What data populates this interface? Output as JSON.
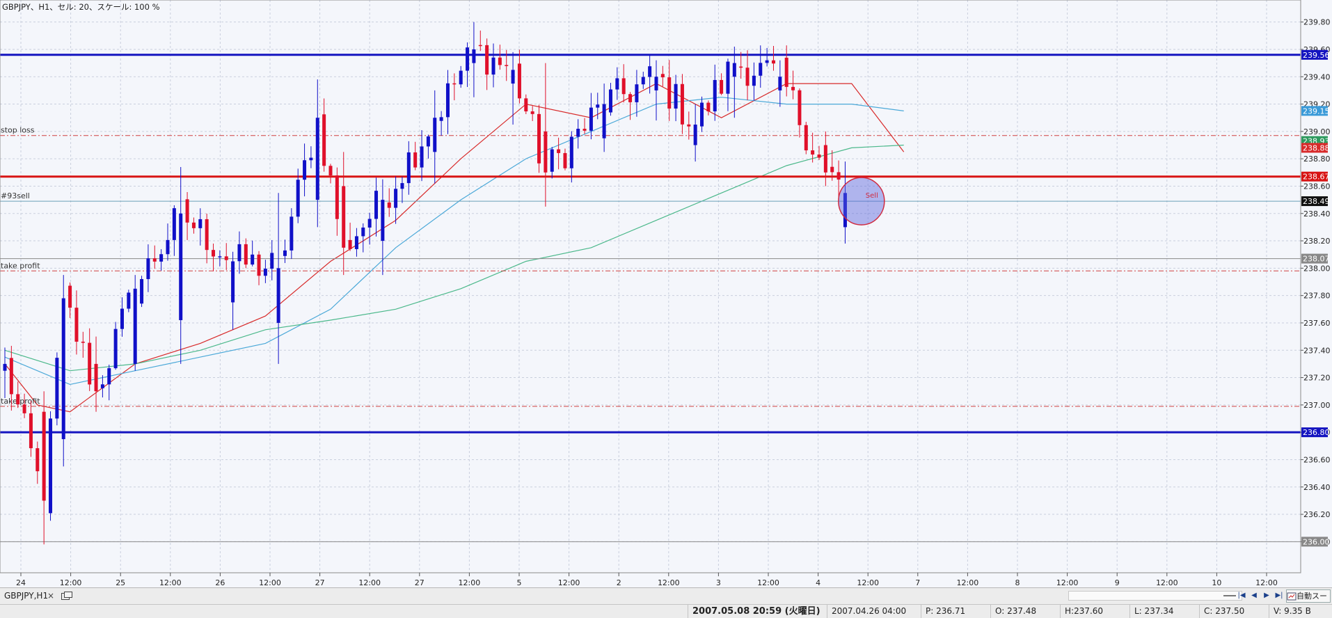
{
  "window": {
    "title": "GBPJPY、H1、セル: 20、スケール: 100 %"
  },
  "colors": {
    "background": "#f4f6fb",
    "grid": "#c9cfdd",
    "bull_candle": "#1010c8",
    "bear_candle": "#e0102a",
    "ma_fast": "#d82a2a",
    "ma_mid": "#4aa8d8",
    "ma_slow": "#4ab88a",
    "resistance": "#1414c0",
    "entry": "#d81414",
    "order_line": "#6aa0b8",
    "dashed_levels": "#d04040",
    "gray_level": "#888888"
  },
  "chart_data": {
    "type": "candlestick",
    "symbol": "GBPJPY",
    "timeframe": "H1",
    "ylim": [
      235.9,
      239.9
    ],
    "grid": true,
    "y_ticks": [
      "239.80",
      "239.60",
      "239.40",
      "239.20",
      "239.00",
      "238.80",
      "238.60",
      "238.40",
      "238.20",
      "238.00",
      "237.80",
      "237.60",
      "237.40",
      "237.20",
      "237.00",
      "236.80",
      "236.60",
      "236.40",
      "236.20",
      "236.00"
    ],
    "x_ticks": [
      "24",
      "12:00",
      "25",
      "12:00",
      "26",
      "12:00",
      "27",
      "12:00",
      "27",
      "12:00",
      "5",
      "12:00",
      "2",
      "12:00",
      "3",
      "12:00",
      "4",
      "12:00",
      "7",
      "12:00",
      "8",
      "12:00",
      "9",
      "12:00",
      "10",
      "12:00"
    ],
    "candle_count": 130,
    "ohlc_keypoints": [
      {
        "i": 0,
        "o": 237.25,
        "h": 237.42,
        "l": 237.05,
        "c": 237.3
      },
      {
        "i": 6,
        "o": 236.95,
        "h": 237.1,
        "l": 235.98,
        "c": 236.3
      },
      {
        "i": 9,
        "o": 236.75,
        "h": 237.95,
        "l": 236.55,
        "c": 237.78
      },
      {
        "i": 14,
        "o": 237.3,
        "h": 237.5,
        "l": 236.95,
        "c": 237.1
      },
      {
        "i": 20,
        "o": 237.3,
        "h": 237.95,
        "l": 237.25,
        "c": 237.85
      },
      {
        "i": 27,
        "o": 237.62,
        "h": 238.74,
        "l": 237.3,
        "c": 238.4
      },
      {
        "i": 35,
        "o": 237.75,
        "h": 238.12,
        "l": 237.55,
        "c": 238.05
      },
      {
        "i": 42,
        "o": 237.6,
        "h": 238.55,
        "l": 237.3,
        "c": 238.0
      },
      {
        "i": 48,
        "o": 238.5,
        "h": 239.38,
        "l": 238.3,
        "c": 239.1
      },
      {
        "i": 52,
        "o": 238.6,
        "h": 238.85,
        "l": 237.95,
        "c": 238.15
      },
      {
        "i": 58,
        "o": 238.2,
        "h": 238.65,
        "l": 237.95,
        "c": 238.5
      },
      {
        "i": 66,
        "o": 238.85,
        "h": 239.3,
        "l": 238.62,
        "c": 239.1
      },
      {
        "i": 72,
        "o": 239.5,
        "h": 239.8,
        "l": 239.25,
        "c": 239.6
      },
      {
        "i": 78,
        "o": 239.35,
        "h": 239.58,
        "l": 239.05,
        "c": 239.45
      },
      {
        "i": 83,
        "o": 239.0,
        "h": 239.5,
        "l": 238.45,
        "c": 238.7
      },
      {
        "i": 92,
        "o": 238.95,
        "h": 239.35,
        "l": 238.85,
        "c": 239.2
      },
      {
        "i": 100,
        "o": 239.3,
        "h": 239.52,
        "l": 239.08,
        "c": 239.4
      },
      {
        "i": 106,
        "o": 238.9,
        "h": 239.2,
        "l": 238.78,
        "c": 239.05
      },
      {
        "i": 112,
        "o": 239.4,
        "h": 239.62,
        "l": 239.1,
        "c": 239.5
      },
      {
        "i": 119,
        "o": 239.3,
        "h": 239.52,
        "l": 239.18,
        "c": 239.4
      },
      {
        "i": 126,
        "o": 238.9,
        "h": 239.0,
        "l": 238.6,
        "c": 238.7
      },
      {
        "i": 129,
        "o": 238.3,
        "h": 238.78,
        "l": 238.18,
        "c": 238.55
      }
    ],
    "moving_averages": [
      {
        "color_key": "ma_fast",
        "points": [
          [
            0,
            237.3
          ],
          [
            5,
            237.0
          ],
          [
            10,
            236.95
          ],
          [
            20,
            237.3
          ],
          [
            30,
            237.45
          ],
          [
            40,
            237.65
          ],
          [
            50,
            238.05
          ],
          [
            60,
            238.35
          ],
          [
            70,
            238.8
          ],
          [
            80,
            239.2
          ],
          [
            90,
            239.1
          ],
          [
            100,
            239.35
          ],
          [
            110,
            239.1
          ],
          [
            120,
            239.35
          ],
          [
            130,
            239.35
          ],
          [
            138,
            238.85
          ]
        ]
      },
      {
        "color_key": "ma_mid",
        "points": [
          [
            0,
            237.35
          ],
          [
            10,
            237.15
          ],
          [
            20,
            237.25
          ],
          [
            30,
            237.35
          ],
          [
            40,
            237.45
          ],
          [
            50,
            237.7
          ],
          [
            60,
            238.15
          ],
          [
            70,
            238.5
          ],
          [
            80,
            238.8
          ],
          [
            90,
            239.0
          ],
          [
            100,
            239.2
          ],
          [
            110,
            239.25
          ],
          [
            120,
            239.2
          ],
          [
            130,
            239.2
          ],
          [
            138,
            239.15
          ]
        ]
      },
      {
        "color_key": "ma_slow",
        "points": [
          [
            0,
            237.4
          ],
          [
            10,
            237.25
          ],
          [
            20,
            237.3
          ],
          [
            30,
            237.4
          ],
          [
            40,
            237.55
          ],
          [
            50,
            237.62
          ],
          [
            60,
            237.7
          ],
          [
            70,
            237.85
          ],
          [
            80,
            238.05
          ],
          [
            90,
            238.15
          ],
          [
            100,
            238.35
          ],
          [
            110,
            238.55
          ],
          [
            120,
            238.75
          ],
          [
            130,
            238.88
          ],
          [
            138,
            238.9
          ]
        ]
      }
    ],
    "horizontal_lines": [
      {
        "price": 239.56,
        "style": "solid",
        "color_key": "resistance",
        "label": "",
        "tag": "239.56",
        "tag_bg": "#1414c0"
      },
      {
        "price": 239.15,
        "style": "none",
        "color_key": "ma_mid",
        "label": "",
        "tag": "239.15",
        "tag_bg": "#3a9ad8"
      },
      {
        "price": 238.97,
        "style": "dash",
        "color_key": "dashed_levels",
        "label": "stop loss",
        "tag": "",
        "tag_bg": ""
      },
      {
        "price": 238.93,
        "style": "none",
        "color_key": "ma_slow",
        "label": "",
        "tag": "238.93",
        "tag_bg": "#2e9a5e"
      },
      {
        "price": 238.88,
        "style": "none",
        "color_key": "ma_fast",
        "label": "",
        "tag": "238.88",
        "tag_bg": "#d82a2a"
      },
      {
        "price": 238.67,
        "style": "solid",
        "color_key": "entry",
        "label": "",
        "tag": "238.67",
        "tag_bg": "#d81414"
      },
      {
        "price": 238.49,
        "style": "thin",
        "color_key": "order_line",
        "label": "#93sell",
        "tag": "238.49",
        "tag_bg": "#111111"
      },
      {
        "price": 238.07,
        "style": "thin",
        "color_key": "gray_level",
        "label": "",
        "tag": "238.07",
        "tag_bg": "#888888"
      },
      {
        "price": 237.98,
        "style": "dash",
        "color_key": "dashed_levels",
        "label": "take profit",
        "tag": "",
        "tag_bg": ""
      },
      {
        "price": 236.99,
        "style": "dash",
        "color_key": "dashed_levels",
        "label": "take profit",
        "tag": "",
        "tag_bg": ""
      },
      {
        "price": 236.8,
        "style": "solid",
        "color_key": "resistance",
        "label": "",
        "tag": "236.80",
        "tag_bg": "#1414c0"
      },
      {
        "price": 236.0,
        "style": "thin",
        "color_key": "gray_level",
        "label": "",
        "tag": "236.00",
        "tag_bg": "#888888"
      }
    ],
    "annotation": {
      "text": "Sell",
      "price": 238.49,
      "candle_index": 130
    }
  },
  "tab": {
    "label": "GBPJPY,H1",
    "close": "×"
  },
  "nav": {
    "first": "|◀",
    "prev": "◀",
    "next": "▶",
    "last": "▶|",
    "autoscroll": "自動スー"
  },
  "status": {
    "date": "2007.05.08 20:59 (火曜日)",
    "bar_time": "2007.04.26 04:00",
    "price": "P: 236.71",
    "open": "O: 237.48",
    "high": "H:237.60",
    "low": "L: 237.34",
    "close": "C: 237.50",
    "volume": "V: 9.35 B"
  }
}
